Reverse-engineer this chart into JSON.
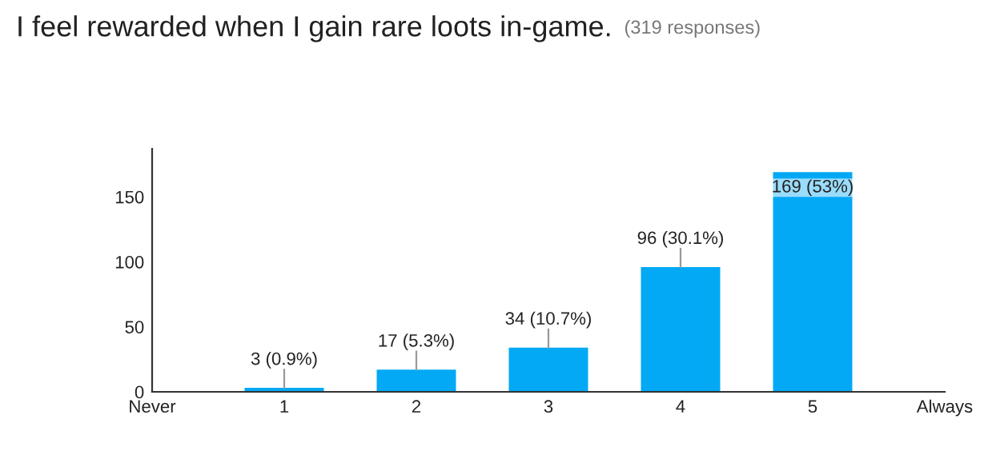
{
  "chart_data": {
    "type": "bar",
    "title": "I feel rewarded when I gain rare loots in-game.",
    "subtitle": "(319 responses)",
    "categories": [
      "Never",
      "1",
      "2",
      "3",
      "4",
      "5",
      "Always"
    ],
    "values": [
      null,
      3,
      17,
      34,
      96,
      169,
      null
    ],
    "value_labels": [
      null,
      "3 (0.9%)",
      "17 (5.3%)",
      "34 (10.7%)",
      "96 (30.1%)",
      "169 (53%)",
      null
    ],
    "color": "#03a9f4",
    "ylim": [
      0,
      187
    ],
    "yticks": [
      0,
      50,
      100,
      150
    ],
    "grid": false,
    "legend": false
  }
}
